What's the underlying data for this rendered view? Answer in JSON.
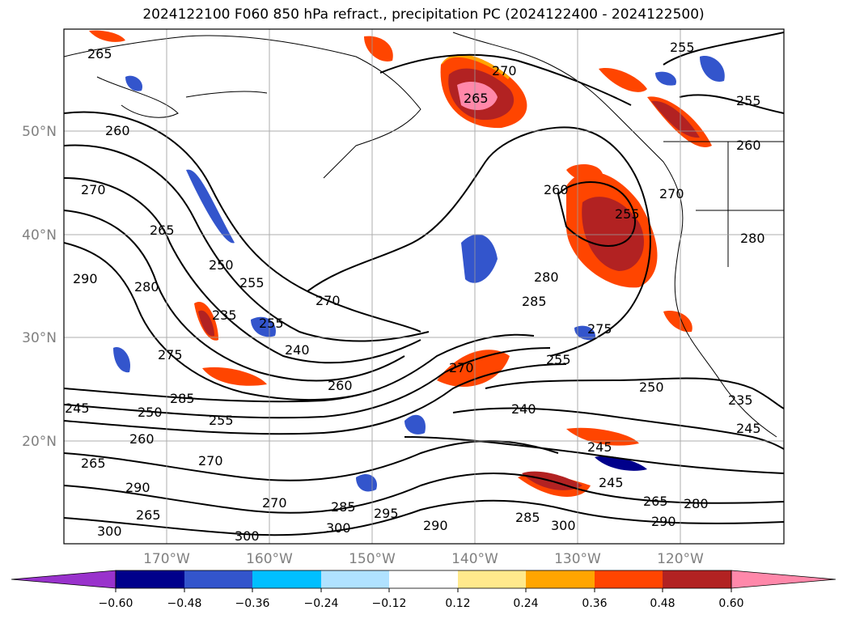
{
  "title": "2024122100 F060 850 hPa refract., precipitation PC (2024122400 - 2024122500)",
  "map": {
    "lat_ticks": [
      "50°N",
      "40°N",
      "30°N",
      "20°N"
    ],
    "lon_ticks": [
      "170°W",
      "160°W",
      "150°W",
      "140°W",
      "130°W",
      "120°W"
    ]
  },
  "colorbar": {
    "ticks": [
      "−0.60",
      "−0.48",
      "−0.36",
      "−0.24",
      "−0.12",
      "0.12",
      "0.24",
      "0.36",
      "0.48",
      "0.60"
    ],
    "colors": [
      "#9932cc",
      "#00008b",
      "#3355cc",
      "#00bfff",
      "#b0e2ff",
      "#ffffff",
      "#ffe98c",
      "#ffa500",
      "#ff4500",
      "#b22222",
      "#ff88aa"
    ]
  },
  "contour_labels": [
    "265",
    "270",
    "265",
    "260",
    "255",
    "255",
    "270",
    "260",
    "260",
    "255",
    "270",
    "265",
    "250",
    "255",
    "235",
    "240",
    "270",
    "280",
    "285",
    "290",
    "255",
    "280",
    "275",
    "245",
    "285",
    "250",
    "255",
    "260",
    "265",
    "270",
    "260",
    "275",
    "270",
    "255",
    "250",
    "240",
    "235",
    "245",
    "245",
    "245",
    "265",
    "280",
    "290",
    "285",
    "300",
    "290",
    "295",
    "300",
    "270",
    "285",
    "300",
    "265",
    "290",
    "300",
    "280"
  ]
}
